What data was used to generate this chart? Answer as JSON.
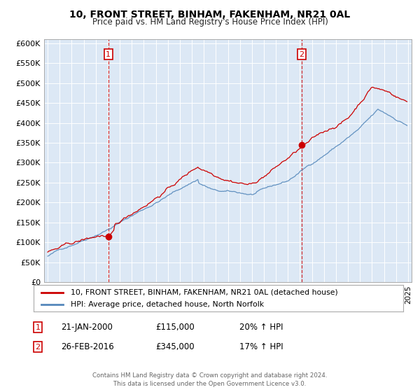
{
  "title": "10, FRONT STREET, BINHAM, FAKENHAM, NR21 0AL",
  "subtitle": "Price paid vs. HM Land Registry's House Price Index (HPI)",
  "ylabel_ticks": [
    "£0",
    "£50K",
    "£100K",
    "£150K",
    "£200K",
    "£250K",
    "£300K",
    "£350K",
    "£400K",
    "£450K",
    "£500K",
    "£550K",
    "£600K"
  ],
  "ytick_values": [
    0,
    50000,
    100000,
    150000,
    200000,
    250000,
    300000,
    350000,
    400000,
    450000,
    500000,
    550000,
    600000
  ],
  "ylim": [
    0,
    610000
  ],
  "xlim_start": 1994.7,
  "xlim_end": 2025.3,
  "legend_line1": "10, FRONT STREET, BINHAM, FAKENHAM, NR21 0AL (detached house)",
  "legend_line2": "HPI: Average price, detached house, North Norfolk",
  "sale1_label": "1",
  "sale1_date": "21-JAN-2000",
  "sale1_price": "£115,000",
  "sale1_hpi": "20% ↑ HPI",
  "sale2_label": "2",
  "sale2_date": "26-FEB-2016",
  "sale2_price": "£345,000",
  "sale2_hpi": "17% ↑ HPI",
  "footer": "Contains HM Land Registry data © Crown copyright and database right 2024.\nThis data is licensed under the Open Government Licence v3.0.",
  "red_color": "#cc0000",
  "blue_color": "#5588bb",
  "sale1_x": 2000.05,
  "sale2_x": 2016.15,
  "background_color": "#ffffff",
  "plot_bg_color": "#dce8f5",
  "grid_color": "#ffffff"
}
